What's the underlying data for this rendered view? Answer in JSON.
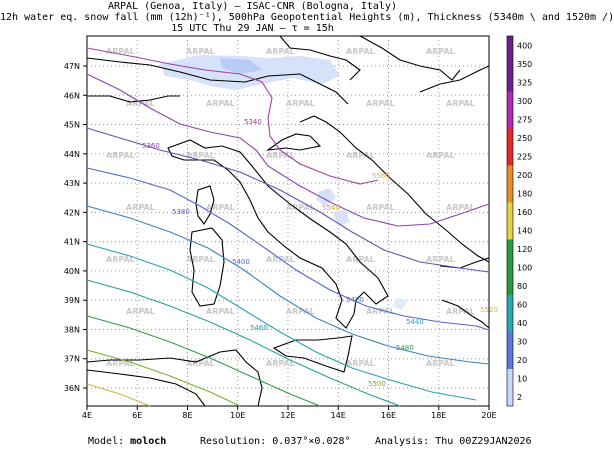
{
  "title": {
    "line1": "ARPAL (Genoa, Italy)  –  ISAC-CNR (Bologna, Italy)",
    "line2": "12h water eq. snow fall (mm (12h)⁻¹), 500hPa Geopotential Heights (m), Thickness (5340m \\ and 1520m /)",
    "line3": "15 UTC Thu 29 JAN   –   τ = 15h"
  },
  "axes": {
    "lon_ticks": [
      "4E",
      "6E",
      "8E",
      "10E",
      "12E",
      "14E",
      "16E",
      "18E",
      "20E"
    ],
    "lat_ticks": [
      "36N",
      "37N",
      "38N",
      "39N",
      "40N",
      "41N",
      "42N",
      "43N",
      "44N",
      "45N",
      "46N",
      "47N"
    ]
  },
  "watermark": "ARPAL",
  "contour_labels": [
    "5340",
    "5360",
    "5380",
    "5400",
    "5420",
    "5440",
    "5460",
    "5480",
    "5500",
    "5520",
    "5540",
    "5560"
  ],
  "colorbar": {
    "labels": [
      "2",
      "10",
      "20",
      "30",
      "40",
      "60",
      "80",
      "100",
      "120",
      "140",
      "160",
      "180",
      "200",
      "225",
      "250",
      "275",
      "300",
      "325",
      "350",
      "400"
    ],
    "colors": {
      "light_blue": "#c8d8ff",
      "blue": "#5a78e6",
      "teal": "#28a8b4",
      "green": "#2a9a3a",
      "yellow": "#e6d23c",
      "orange": "#e68c28",
      "red": "#e62828",
      "magenta": "#b428b4",
      "purple": "#6e1e8c"
    }
  },
  "footer": {
    "model_label": "Model:",
    "model_value": "moloch",
    "resolution_label": "Resolution:",
    "resolution_value": "0.037°×0.028°",
    "analysis_label": "Analysis:",
    "analysis_value": "Thu 00Z29JAN2026"
  }
}
